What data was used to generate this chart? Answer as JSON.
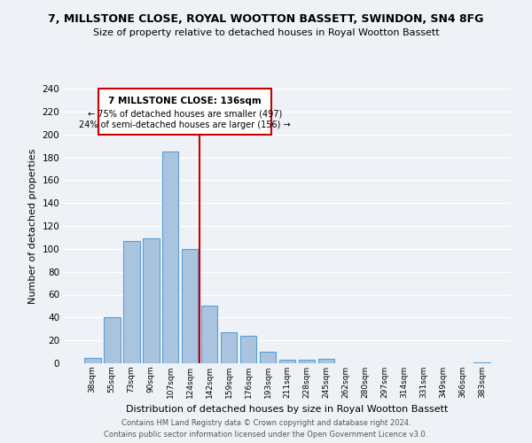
{
  "title_line1": "7, MILLSTONE CLOSE, ROYAL WOOTTON BASSETT, SWINDON, SN4 8FG",
  "title_line2": "Size of property relative to detached houses in Royal Wootton Bassett",
  "xlabel": "Distribution of detached houses by size in Royal Wootton Bassett",
  "ylabel": "Number of detached properties",
  "bar_labels": [
    "38sqm",
    "55sqm",
    "73sqm",
    "90sqm",
    "107sqm",
    "124sqm",
    "142sqm",
    "159sqm",
    "176sqm",
    "193sqm",
    "211sqm",
    "228sqm",
    "245sqm",
    "262sqm",
    "280sqm",
    "297sqm",
    "314sqm",
    "331sqm",
    "349sqm",
    "366sqm",
    "383sqm"
  ],
  "bar_heights": [
    5,
    40,
    107,
    109,
    185,
    100,
    50,
    27,
    24,
    10,
    3,
    3,
    4,
    0,
    0,
    0,
    0,
    0,
    0,
    0,
    1
  ],
  "bar_color": "#aac4e0",
  "bar_edge_color": "#5a9fd4",
  "vline_color": "#cc0000",
  "annotation_title": "7 MILLSTONE CLOSE: 136sqm",
  "annotation_line1": "← 75% of detached houses are smaller (497)",
  "annotation_line2": "24% of semi-detached houses are larger (156) →",
  "annotation_box_color": "#ffffff",
  "annotation_box_edge": "#cc0000",
  "ylim": [
    0,
    240
  ],
  "yticks": [
    0,
    20,
    40,
    60,
    80,
    100,
    120,
    140,
    160,
    180,
    200,
    220,
    240
  ],
  "footer_line1": "Contains HM Land Registry data © Crown copyright and database right 2024.",
  "footer_line2": "Contains public sector information licensed under the Open Government Licence v3.0.",
  "background_color": "#eef2f7",
  "grid_color": "#ffffff"
}
